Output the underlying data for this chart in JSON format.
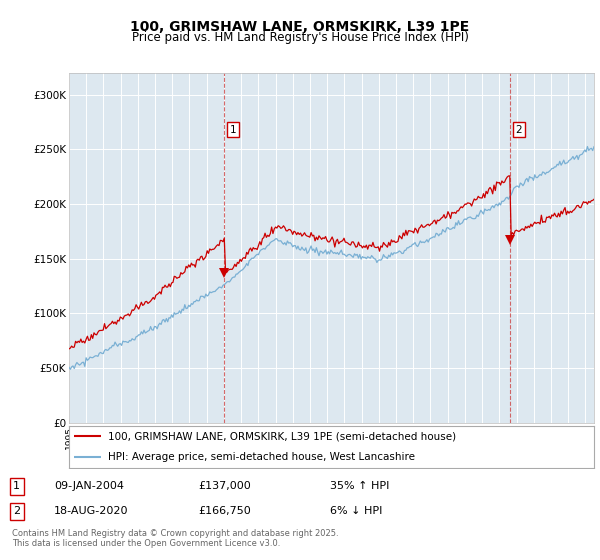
{
  "title_line1": "100, GRIMSHAW LANE, ORMSKIRK, L39 1PE",
  "title_line2": "Price paid vs. HM Land Registry's House Price Index (HPI)",
  "background_color": "#dde8f0",
  "plot_background": "#dde8f0",
  "red_color": "#cc0000",
  "blue_color": "#7ab0d4",
  "ylim": [
    0,
    320000
  ],
  "yticks": [
    0,
    50000,
    100000,
    150000,
    200000,
    250000,
    300000
  ],
  "ytick_labels": [
    "£0",
    "£50K",
    "£100K",
    "£150K",
    "£200K",
    "£250K",
    "£300K"
  ],
  "legend1_label": "100, GRIMSHAW LANE, ORMSKIRK, L39 1PE (semi-detached house)",
  "legend2_label": "HPI: Average price, semi-detached house, West Lancashire",
  "annotation1_date": "09-JAN-2004",
  "annotation1_price": "£137,000",
  "annotation1_pct": "35% ↑ HPI",
  "annotation2_date": "18-AUG-2020",
  "annotation2_price": "£166,750",
  "annotation2_pct": "6% ↓ HPI",
  "footer": "Contains HM Land Registry data © Crown copyright and database right 2025.\nThis data is licensed under the Open Government Licence v3.0.",
  "sale1_x": 2004.03,
  "sale1_y": 137000,
  "sale2_x": 2020.63,
  "sale2_y": 166750,
  "xmin": 1995,
  "xmax": 2025.5
}
